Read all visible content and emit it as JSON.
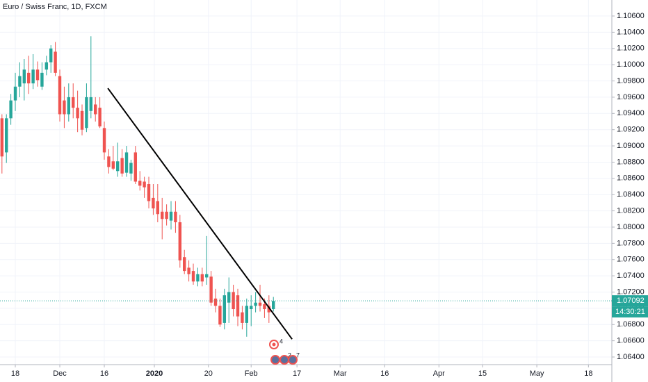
{
  "chart_data": {
    "type": "candlestick",
    "title": "Euro / Swiss Franc, 1D, FXCM",
    "x": [
      -3,
      -2,
      -1,
      0,
      1,
      2,
      3,
      4,
      5,
      6,
      7,
      8,
      9,
      10,
      11,
      12,
      13,
      14,
      15,
      16,
      17,
      18,
      19,
      20,
      21,
      22,
      23,
      24,
      25,
      26,
      27,
      28,
      29,
      30,
      31,
      32,
      33,
      34,
      35,
      36,
      37,
      38,
      39,
      40,
      41,
      42,
      43,
      44,
      45,
      46,
      47,
      48,
      49,
      50,
      51,
      52,
      53,
      54,
      55,
      56,
      57,
      58
    ],
    "open": [
      1.0934,
      1.0892,
      1.0934,
      1.0956,
      1.0973,
      1.0977,
      1.099,
      1.0977,
      1.0994,
      1.0973,
      1.0994,
      1.1003,
      1.1016,
      1.0986,
      1.0956,
      1.0939,
      1.096,
      1.0947,
      1.0943,
      1.0922,
      1.0943,
      1.0951,
      1.0947,
      1.0922,
      1.0887,
      1.0881,
      1.0869,
      1.0885,
      1.0867,
      1.0866,
      1.0892,
      1.0857,
      1.0856,
      1.0853,
      1.0836,
      1.0832,
      1.0819,
      1.0819,
      1.0808,
      1.0819,
      1.0806,
      1.0763,
      1.075,
      1.0746,
      1.0733,
      1.0742,
      1.0738,
      1.0739,
      1.0712,
      1.0703,
      1.0682,
      1.0707,
      1.072,
      1.0716,
      1.0695,
      1.0682,
      1.0699,
      1.0703,
      1.0707,
      1.0705,
      1.0703,
      1.0699
    ],
    "high": [
      1.0939,
      1.0939,
      1.0964,
      1.099,
      1.1003,
      1.1007,
      1.1011,
      1.1013,
      1.1004,
      1.1003,
      1.1011,
      1.1024,
      1.1028,
      1.0994,
      1.0973,
      1.0977,
      1.0977,
      1.0968,
      1.0951,
      1.0977,
      1.1035,
      1.096,
      1.096,
      1.093,
      1.0896,
      1.09,
      1.0904,
      1.0896,
      1.09,
      1.0883,
      1.09,
      1.0869,
      1.0862,
      1.0862,
      1.0853,
      1.0853,
      1.0836,
      1.0828,
      1.0832,
      1.0832,
      1.0815,
      1.0772,
      1.0759,
      1.0755,
      1.075,
      1.075,
      1.0789,
      1.0746,
      1.0724,
      1.0712,
      1.0724,
      1.0738,
      1.0729,
      1.0724,
      1.0703,
      1.0712,
      1.0716,
      1.072,
      1.0729,
      1.0712,
      1.0716,
      1.0714
    ],
    "low": [
      1.0866,
      1.0879,
      1.0926,
      1.0943,
      1.096,
      1.0956,
      1.0964,
      1.097,
      1.0973,
      1.0969,
      1.0987,
      1.099,
      1.0986,
      1.093,
      1.0922,
      1.093,
      1.0934,
      1.0917,
      1.0913,
      1.0917,
      1.0934,
      1.093,
      1.0922,
      1.0883,
      1.0866,
      1.087,
      1.0862,
      1.0862,
      1.0862,
      1.0857,
      1.0853,
      1.0845,
      1.0836,
      1.0823,
      1.0815,
      1.0806,
      1.0785,
      1.0802,
      1.0797,
      1.0793,
      1.075,
      1.0742,
      1.0733,
      1.0729,
      1.0727,
      1.0727,
      1.0729,
      1.0703,
      1.0695,
      1.0677,
      1.0674,
      1.0682,
      1.069,
      1.0678,
      1.0674,
      1.0665,
      1.0678,
      1.0695,
      1.0696,
      1.0688,
      1.0682,
      1.0696
    ],
    "close": [
      1.0887,
      1.0934,
      1.0956,
      1.0973,
      1.0986,
      1.0994,
      1.0977,
      1.0994,
      1.0981,
      1.099,
      1.1003,
      1.102,
      1.099,
      1.0939,
      1.0939,
      1.096,
      1.0947,
      1.0934,
      1.092,
      1.096,
      1.096,
      1.0939,
      1.0924,
      1.0892,
      1.0874,
      1.0872,
      1.0881,
      1.0866,
      1.0892,
      1.0879,
      1.0856,
      1.0851,
      1.0849,
      1.0832,
      1.0823,
      1.0816,
      1.081,
      1.081,
      1.0819,
      1.0806,
      1.0759,
      1.0746,
      1.0742,
      1.0733,
      1.0742,
      1.0733,
      1.0742,
      1.0707,
      1.0703,
      1.068,
      1.0716,
      1.072,
      1.0699,
      1.069,
      1.0682,
      1.0703,
      1.0703,
      1.0707,
      1.0703,
      1.0699,
      1.0695,
      1.0709
    ],
    "up_color": "#26a69a",
    "down_color": "#ef5350",
    "xlim": [
      -3.44,
      134.06
    ],
    "xticks": [
      {
        "value": 0,
        "label": "18"
      },
      {
        "value": 10,
        "label": "Dec"
      },
      {
        "value": 20,
        "label": "16"
      },
      {
        "value": 31.25,
        "label": "2020"
      },
      {
        "value": 43.4,
        "label": "20"
      },
      {
        "value": 53,
        "label": "Feb"
      },
      {
        "value": 63.3,
        "label": "17"
      },
      {
        "value": 73,
        "label": "Mar"
      },
      {
        "value": 83,
        "label": "16"
      },
      {
        "value": 95.2,
        "label": "Apr"
      },
      {
        "value": 105,
        "label": "15"
      },
      {
        "value": 117.2,
        "label": "May"
      },
      {
        "value": 128.8,
        "label": "18"
      }
    ],
    "ylim": [
      1.06306,
      1.10797
    ],
    "yticks": [
      {
        "value": 1.106,
        "label": "1.10600"
      },
      {
        "value": 1.104,
        "label": "1.10400"
      },
      {
        "value": 1.102,
        "label": "1.10200"
      },
      {
        "value": 1.1,
        "label": "1.10000"
      },
      {
        "value": 1.098,
        "label": "1.09800"
      },
      {
        "value": 1.096,
        "label": "1.09600"
      },
      {
        "value": 1.094,
        "label": "1.09400"
      },
      {
        "value": 1.092,
        "label": "1.09200"
      },
      {
        "value": 1.09,
        "label": "1.09000"
      },
      {
        "value": 1.088,
        "label": "1.08800"
      },
      {
        "value": 1.086,
        "label": "1.08600"
      },
      {
        "value": 1.084,
        "label": "1.08400"
      },
      {
        "value": 1.082,
        "label": "1.08200"
      },
      {
        "value": 1.08,
        "label": "1.08000"
      },
      {
        "value": 1.078,
        "label": "1.07800"
      },
      {
        "value": 1.076,
        "label": "1.07600"
      },
      {
        "value": 1.074,
        "label": "1.07400"
      },
      {
        "value": 1.072,
        "label": "1.07200"
      },
      {
        "value": 1.07,
        "label": "1.07000"
      },
      {
        "value": 1.068,
        "label": "1.06800"
      },
      {
        "value": 1.066,
        "label": "1.06600"
      },
      {
        "value": 1.064,
        "label": "1.06400"
      }
    ],
    "grid": true,
    "last_price": 1.07092,
    "countdown": "14:30:21",
    "trendline": {
      "x": [
        20.8,
        62.2
      ],
      "y": [
        1.0971,
        1.0662
      ]
    },
    "events": [
      "4",
      "2",
      "7"
    ]
  }
}
